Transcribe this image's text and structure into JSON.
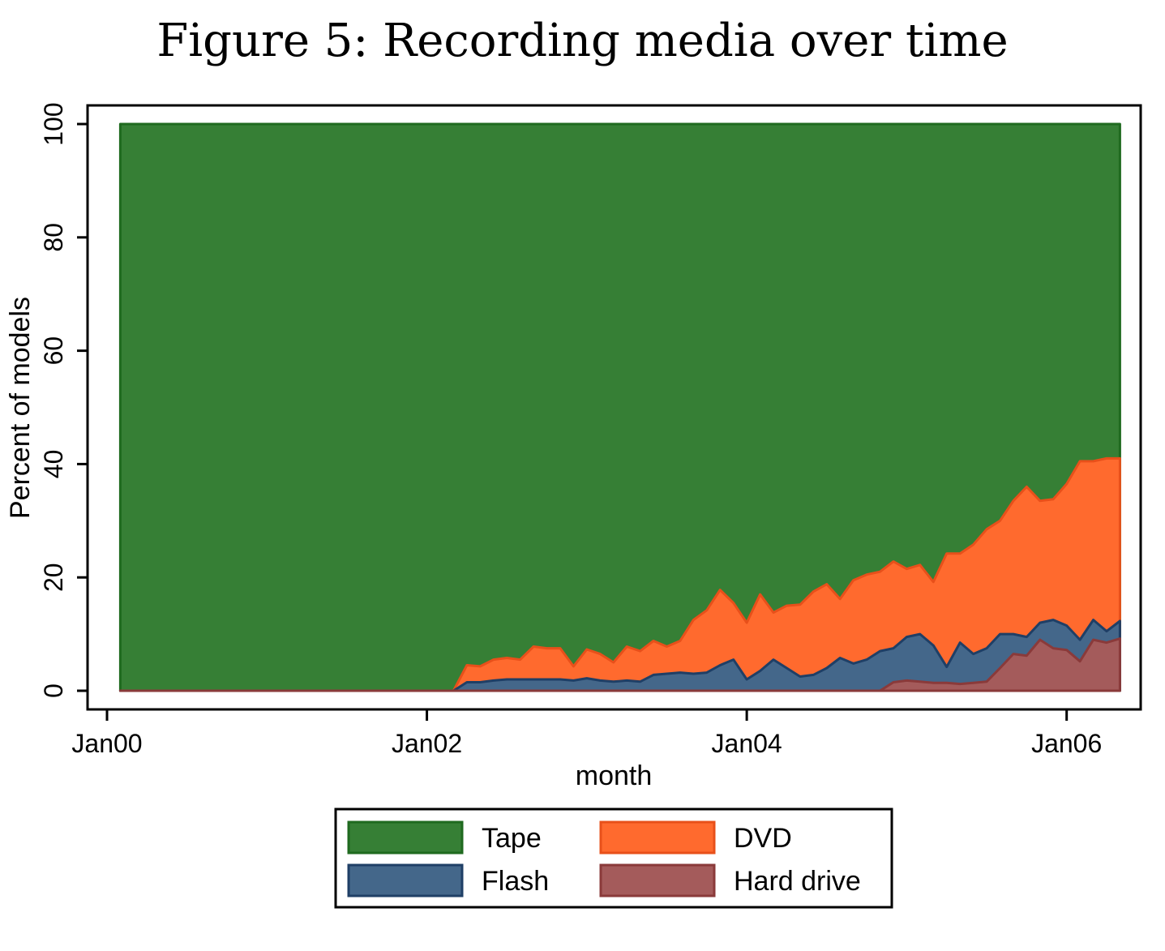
{
  "chart_data": {
    "type": "area",
    "stacked": true,
    "title": "Figure 5: Recording media over time",
    "xlabel": "month",
    "ylabel": "Percent of models",
    "ylim": [
      0,
      100
    ],
    "yticks": [
      0,
      20,
      40,
      60,
      80,
      100
    ],
    "xticks": [
      {
        "date": "2000-01",
        "label": "Jan00"
      },
      {
        "date": "2002-01",
        "label": "Jan02"
      },
      {
        "date": "2004-01",
        "label": "Jan04"
      },
      {
        "date": "2006-01",
        "label": "Jan06"
      }
    ],
    "legend_position": "bottom",
    "series": [
      {
        "name": "Tape",
        "color": "#367f35",
        "stroke": "#1f6a1f"
      },
      {
        "name": "Flash",
        "color": "#44678a",
        "stroke": "#1f3f66"
      },
      {
        "name": "DVD",
        "color": "#ff6a2e",
        "stroke": "#e8501a"
      },
      {
        "name": "Hard drive",
        "color": "#a45b5b",
        "stroke": "#8a3a3a"
      }
    ],
    "x": [
      "2000-02",
      "2002-03",
      "2002-04",
      "2002-05",
      "2002-06",
      "2002-07",
      "2002-08",
      "2002-09",
      "2002-10",
      "2002-11",
      "2002-12",
      "2003-01",
      "2003-02",
      "2003-03",
      "2003-04",
      "2003-05",
      "2003-06",
      "2003-07",
      "2003-08",
      "2003-09",
      "2003-10",
      "2003-11",
      "2003-12",
      "2004-01",
      "2004-02",
      "2004-03",
      "2004-04",
      "2004-05",
      "2004-06",
      "2004-07",
      "2004-08",
      "2004-09",
      "2004-10",
      "2004-11",
      "2004-12",
      "2005-01",
      "2005-02",
      "2005-03",
      "2005-04",
      "2005-05",
      "2005-06",
      "2005-07",
      "2005-08",
      "2005-09",
      "2005-10",
      "2005-11",
      "2005-12",
      "2006-01",
      "2006-02",
      "2006-03",
      "2006-04",
      "2006-05"
    ],
    "flash_top": [
      0,
      0,
      1.5,
      1.5,
      1.8,
      2.0,
      2.0,
      2.0,
      2.0,
      2.0,
      1.8,
      2.2,
      1.8,
      1.6,
      1.8,
      1.6,
      2.8,
      3.0,
      3.2,
      3.0,
      3.2,
      4.5,
      5.5,
      2.0,
      3.5,
      5.5,
      4.0,
      2.5,
      2.8,
      4.0,
      5.8,
      4.8,
      5.5,
      7.0,
      7.5,
      9.5,
      10.0,
      8.0,
      4.2,
      8.5,
      6.5,
      7.5,
      10.0,
      10.0,
      9.5,
      12.0,
      12.5,
      11.5,
      9.0,
      12.5,
      10.5,
      12.3
    ],
    "dvd_top": [
      0,
      0,
      4.5,
      4.3,
      5.5,
      5.8,
      5.5,
      7.8,
      7.5,
      7.5,
      4.3,
      7.3,
      6.5,
      5.0,
      7.8,
      7.0,
      8.8,
      7.8,
      8.8,
      12.5,
      14.2,
      17.8,
      15.5,
      12.0,
      17.0,
      13.8,
      15.0,
      15.2,
      17.5,
      18.8,
      16.2,
      19.5,
      20.5,
      21.0,
      22.8,
      21.5,
      22.2,
      19.2,
      24.2,
      24.2,
      25.8,
      28.5,
      30.0,
      33.5,
      36.0,
      33.5,
      33.8,
      36.5,
      40.5,
      40.5,
      41.0,
      41.0
    ],
    "hd_top": [
      0,
      0,
      0,
      0,
      0,
      0,
      0,
      0,
      0,
      0,
      0,
      0,
      0,
      0,
      0,
      0,
      0,
      0,
      0,
      0,
      0,
      0,
      0,
      0,
      0,
      0,
      0,
      0,
      0,
      0,
      0,
      0,
      0,
      0,
      1.5,
      1.8,
      1.6,
      1.4,
      1.4,
      1.2,
      1.4,
      1.6,
      4.0,
      6.5,
      6.2,
      9.0,
      7.5,
      7.2,
      5.2,
      9.0,
      8.5,
      9.2
    ],
    "tape_top": [
      100,
      100,
      100,
      100,
      100,
      100,
      100,
      100,
      100,
      100,
      100,
      100,
      100,
      100,
      100,
      100,
      100,
      100,
      100,
      100,
      100,
      100,
      100,
      100,
      100,
      100,
      100,
      100,
      100,
      100,
      100,
      100,
      100,
      100,
      100,
      100,
      100,
      100,
      100,
      100,
      100,
      100,
      100,
      100,
      100,
      100,
      100,
      100,
      100,
      100,
      100,
      100
    ]
  }
}
